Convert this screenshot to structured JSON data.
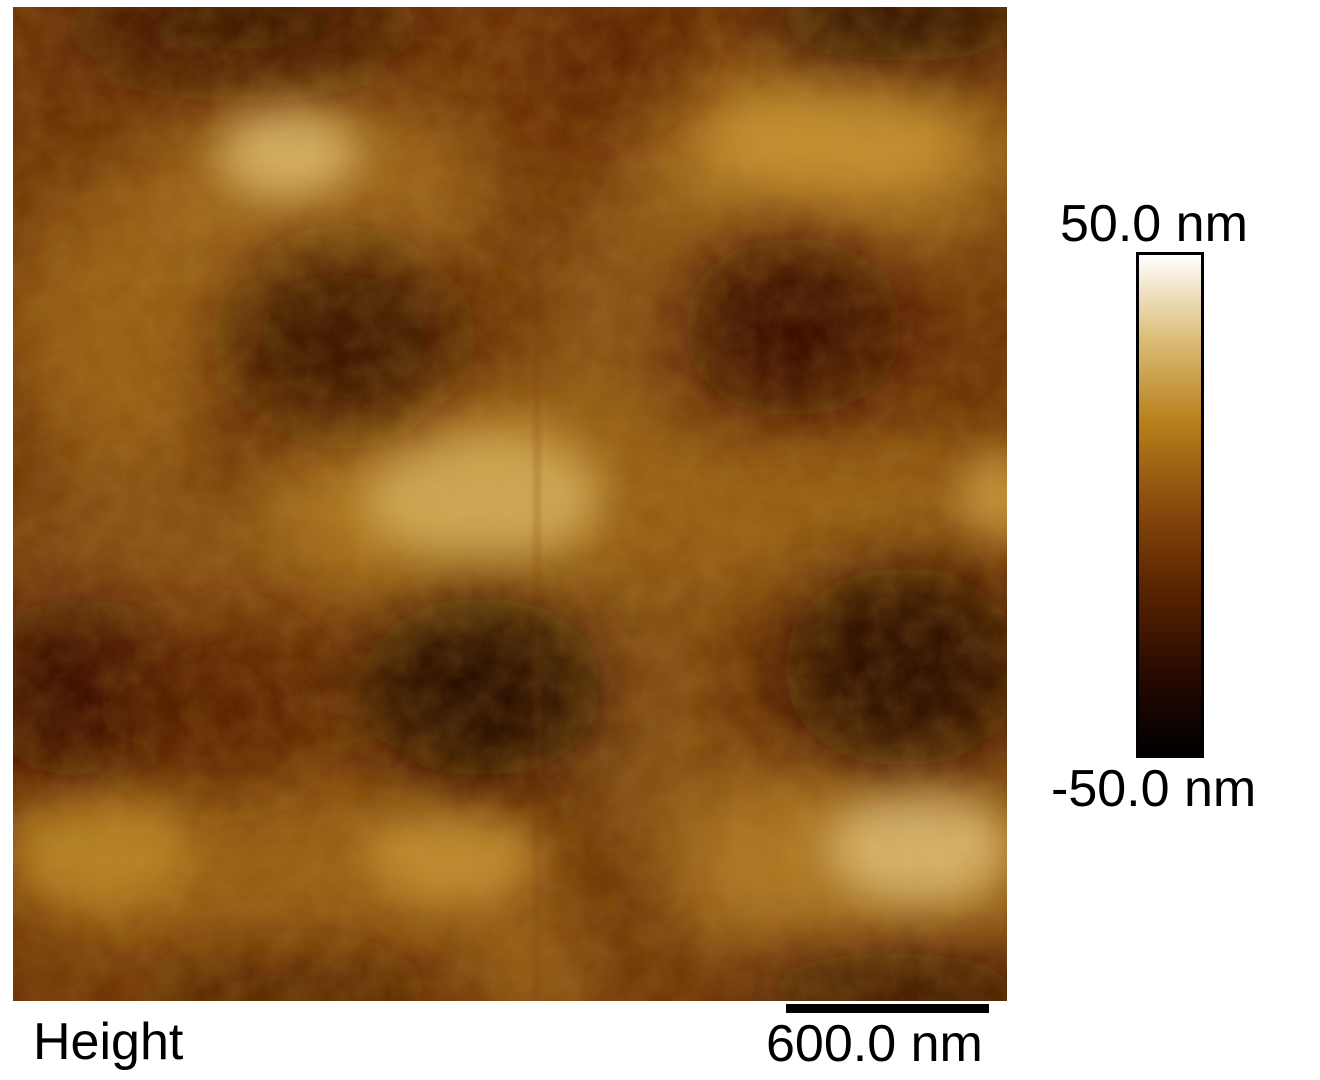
{
  "image": {
    "channel": "Height",
    "scale_bar_label": "600.0 nm",
    "scale_bar_length_nm": 600.0
  },
  "colorbar": {
    "max_label": "50.0 nm",
    "min_label": "-50.0 nm",
    "max_nm": 50.0,
    "min_nm": -50.0,
    "colormap_stops": [
      "#000000",
      "#2a0a00",
      "#5a2400",
      "#8a4a0c",
      "#b8801c",
      "#dcbd78",
      "#ffffff"
    ]
  },
  "colors": {
    "base": "#6b3208",
    "light": "#c79a3e",
    "highlight": "#e0c27c",
    "dark": "#2a0a00"
  }
}
